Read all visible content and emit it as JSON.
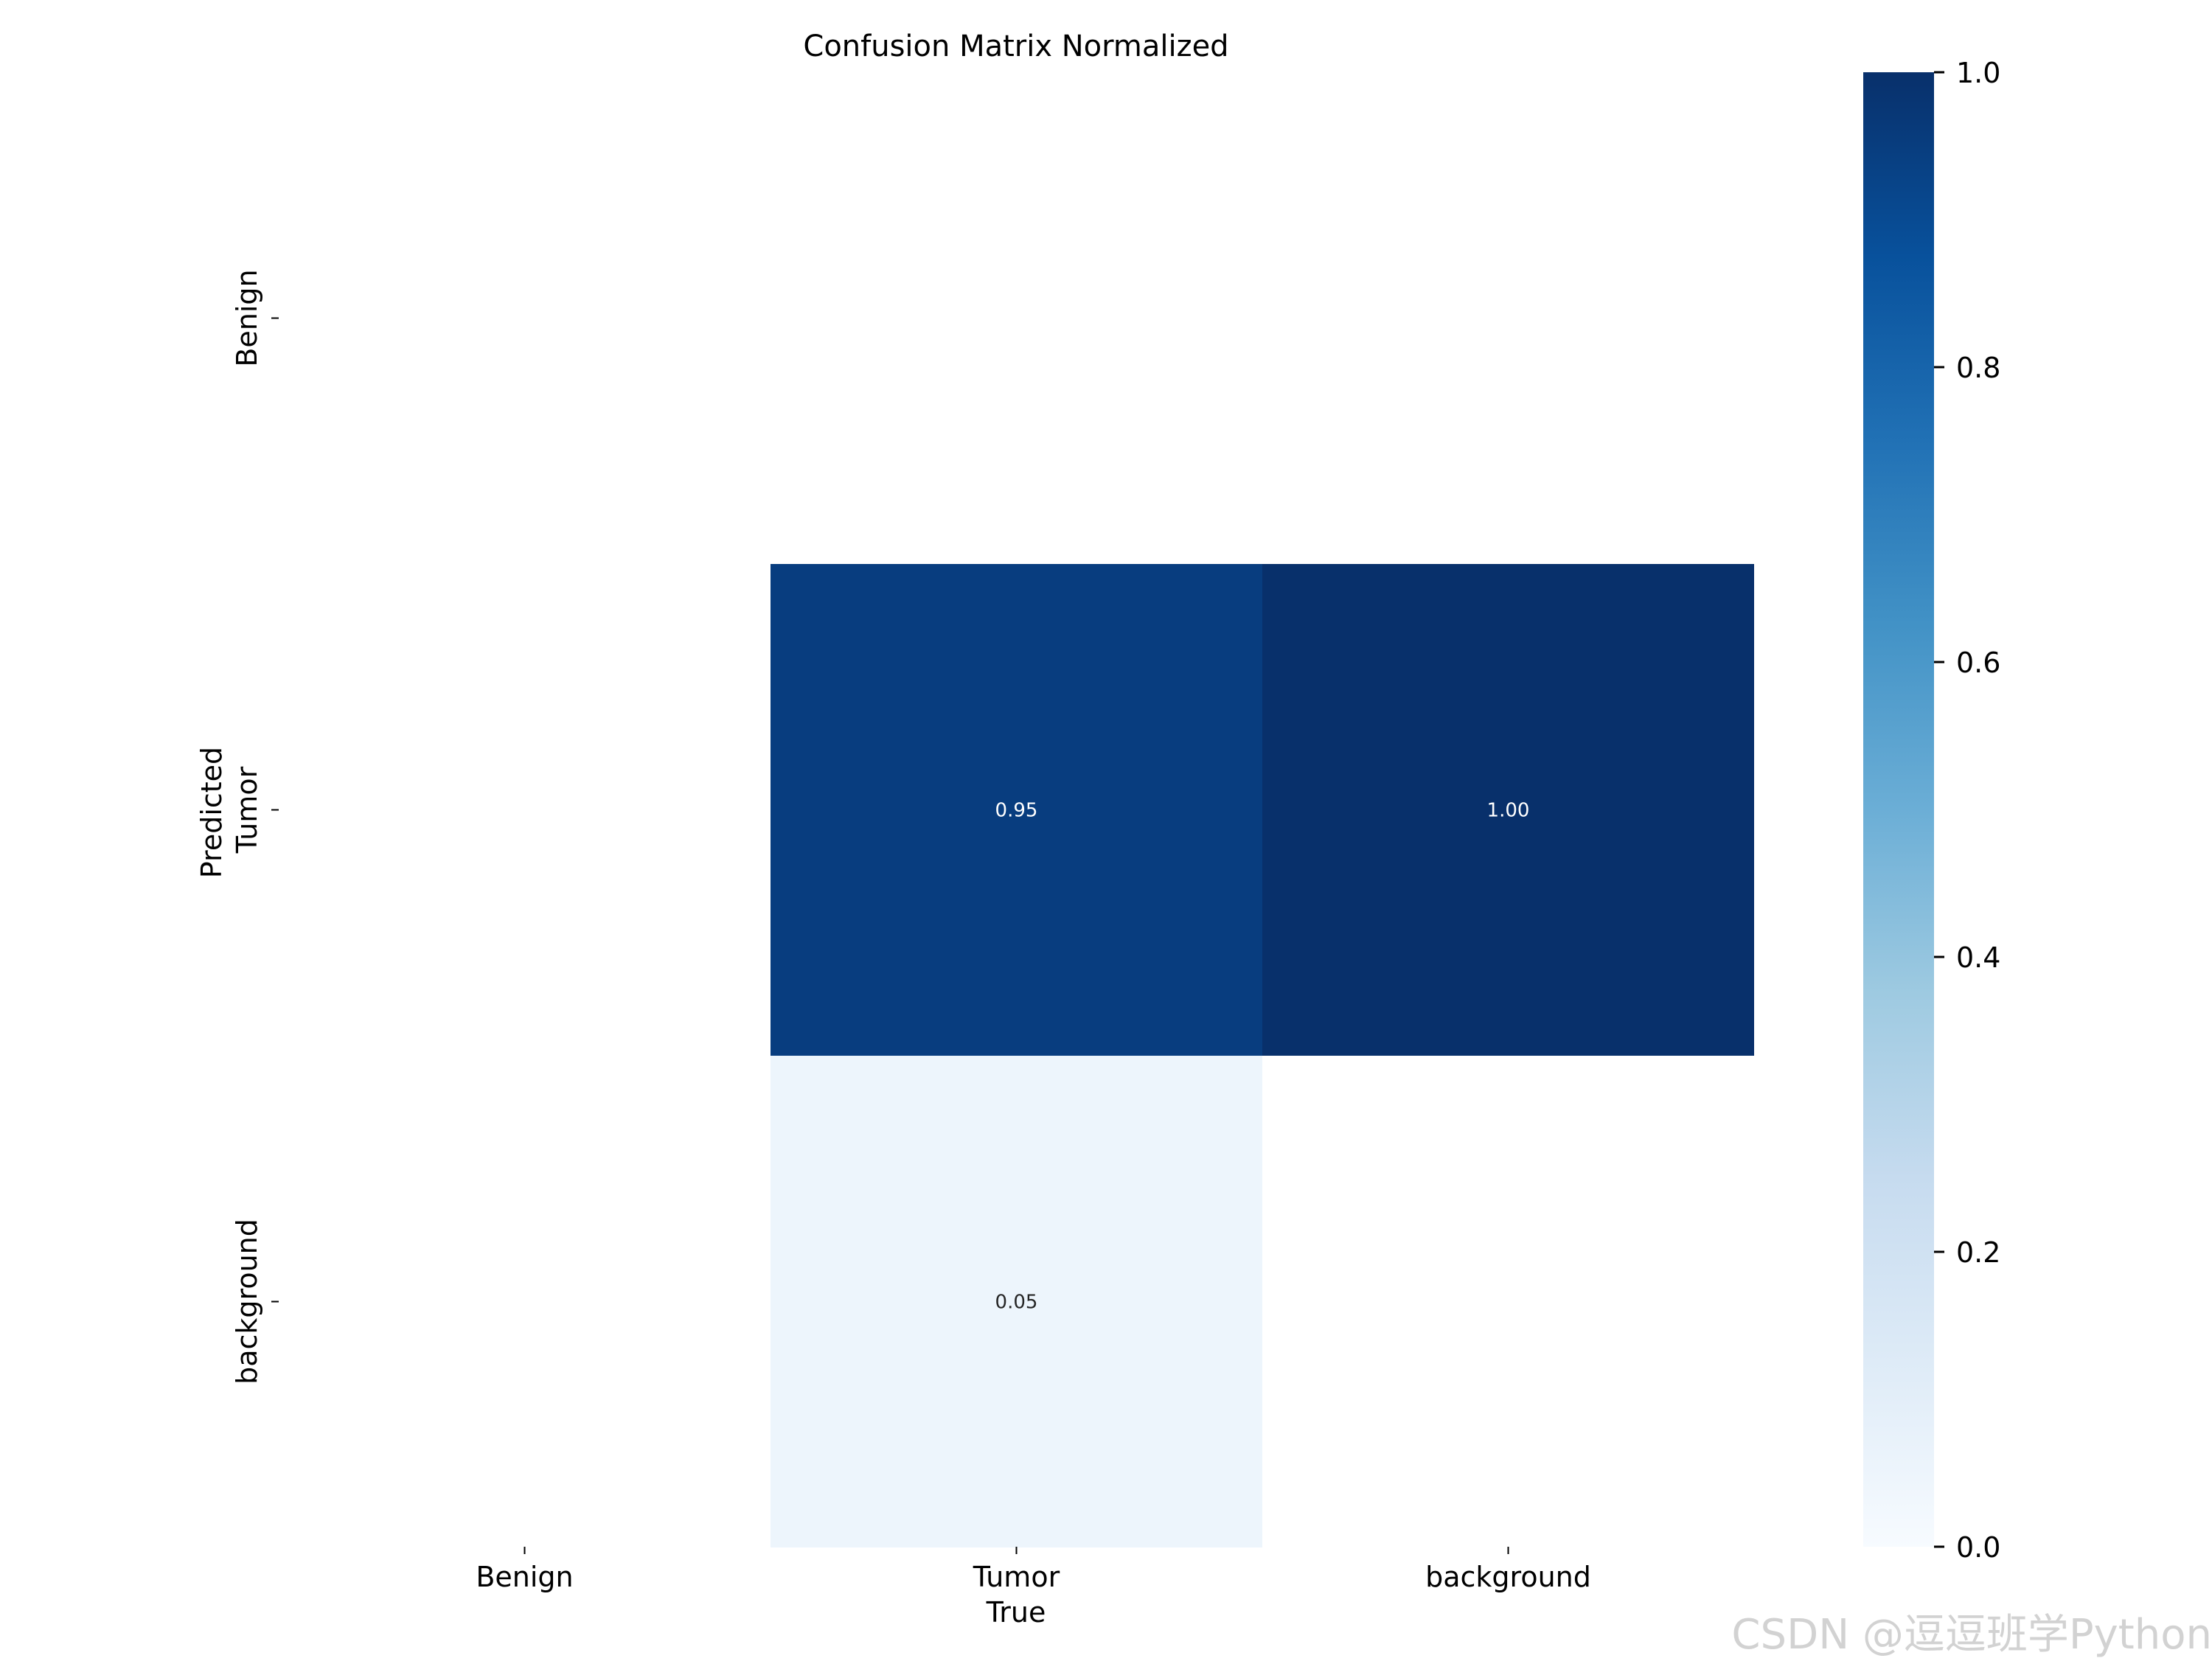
{
  "chart_data": {
    "type": "heatmap",
    "title": "Confusion Matrix Normalized",
    "xlabel": "True",
    "ylabel": "Predicted",
    "x_categories": [
      "Benign",
      "Tumor",
      "background"
    ],
    "y_categories": [
      "Benign",
      "Tumor",
      "background"
    ],
    "matrix": [
      [
        null,
        null,
        null
      ],
      [
        null,
        0.95,
        1.0
      ],
      [
        null,
        0.05,
        null
      ]
    ],
    "value_format": "0.00",
    "colormap": "Blues",
    "color_low": "#f7fbff",
    "color_high": "#08306b",
    "colorbar": {
      "min": 0.0,
      "max": 1.0,
      "ticks": [
        "0.0",
        "0.2",
        "0.4",
        "0.6",
        "0.8",
        "1.0"
      ]
    }
  },
  "watermark": "CSDN @逗逗班学Python"
}
